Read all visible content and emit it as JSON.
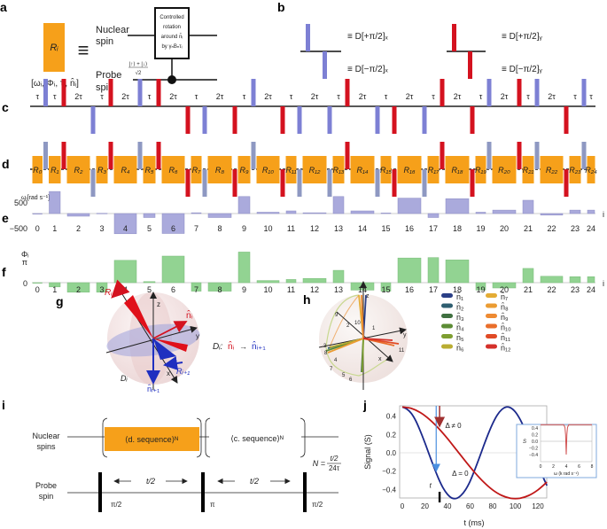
{
  "panel_labels": {
    "a": "a",
    "b": "b",
    "c": "c",
    "d": "d",
    "e": "e",
    "f": "f",
    "g": "g",
    "h": "h",
    "i": "i",
    "j": "j"
  },
  "colors": {
    "pulse_blue": "#7d80d4",
    "pulse_blue_d": "#8e98c2",
    "pulse_red": "#d4121f",
    "block_orange": "#f6a01a",
    "omega_bar": "#aaaadc",
    "phi_bar": "#92d392",
    "curve_blue": "#1c2a8c",
    "curve_red": "#c01818",
    "arrow_light_blue": "#4a8fe0",
    "arrow_dark_red": "#a03030"
  },
  "a": {
    "block_label": "Rᵢ",
    "params": "[ωᵢ, Φᵢ, τᵢ, n̂ᵢ]",
    "equiv": "≡",
    "nuclear_label": [
      "Nuclear",
      "spin"
    ],
    "probe_label": [
      "Probe",
      "spin"
    ],
    "gate_text": [
      "Controlled",
      "rotation",
      "around n̂ᵢ",
      "by γₙBₙτᵢ"
    ],
    "probe_state_num": "|↑⟩ + |↓⟩",
    "probe_state_den": "√2"
  },
  "b": {
    "blue_up": "≡ D[+π/2]ₓ",
    "blue_down": "≡ D[−π/2]ₓ",
    "red_up": "≡ D[+π/2]ᵧ",
    "red_down": "≡ D[−π/2]ᵧ"
  },
  "c": {
    "gaps": [
      "τ",
      "τ",
      "2τ",
      "τ",
      "2τ",
      "τ",
      "2τ",
      "τ",
      "2τ",
      "τ",
      "2τ",
      "τ",
      "2τ",
      "τ",
      "2τ",
      "τ",
      "2τ",
      "τ",
      "2τ",
      "τ",
      "2τ",
      "τ",
      "2τ",
      "τ",
      "τ"
    ],
    "pulses": [
      [
        "blue",
        "up"
      ],
      [
        "red",
        "up"
      ],
      [
        "blue",
        "down"
      ],
      [
        "red",
        "up"
      ],
      [
        "blue",
        "up"
      ],
      [
        "red",
        "up"
      ],
      [
        "red",
        "down"
      ],
      [
        "blue",
        "down"
      ],
      [
        "red",
        "down"
      ],
      [
        "blue",
        "up"
      ],
      [
        "red",
        "down"
      ],
      [
        "blue",
        "down"
      ],
      [
        "blue",
        "down"
      ],
      [
        "red",
        "up"
      ],
      [
        "blue",
        "down"
      ],
      [
        "red",
        "down"
      ],
      [
        "blue",
        "down"
      ],
      [
        "red",
        "up"
      ],
      [
        "red",
        "down"
      ],
      [
        "blue",
        "up"
      ],
      [
        "red",
        "up"
      ],
      [
        "blue",
        "up"
      ],
      [
        "red",
        "down"
      ],
      [
        "blue",
        "up"
      ]
    ]
  },
  "d": {
    "blocks": [
      "R₀",
      "R₁",
      "R₂",
      "R₃",
      "R₄",
      "R₅",
      "R₆",
      "R₇",
      "R₈",
      "R₉",
      "R₁₀",
      "R₁₁",
      "R₁₂",
      "R₁₃",
      "R₁₄",
      "R₁₅",
      "R₁₆",
      "R₁₇",
      "R₁₈",
      "R₁₉",
      "R₂₀",
      "R₂₁",
      "R₂₂",
      "R₂₃",
      "R₂₄"
    ],
    "omega_label": "ωᵢ[rad s⁻¹]"
  },
  "chart_data": [
    {
      "id": "e",
      "type": "bar",
      "ylabel": "ωᵢ[rad s⁻¹]",
      "xlabel": "i",
      "categories": [
        "0",
        "1",
        "2",
        "3",
        "4",
        "5",
        "6",
        "7",
        "8",
        "9",
        "10",
        "11",
        "12",
        "13",
        "14",
        "15",
        "16",
        "17",
        "18",
        "19",
        "20",
        "21",
        "22",
        "23",
        "24"
      ],
      "values": [
        0,
        830,
        -100,
        10,
        -760,
        -150,
        -750,
        30,
        -150,
        640,
        50,
        100,
        30,
        640,
        100,
        20,
        580,
        -150,
        560,
        50,
        130,
        500,
        -60,
        130,
        130
      ],
      "yticks": [
        "500",
        "−500"
      ],
      "ylim": [
        -800,
        900
      ]
    },
    {
      "id": "f",
      "type": "bar",
      "ylabel": "Φᵢ",
      "xlabel": "i",
      "unit": "π",
      "categories": [
        "0",
        "1",
        "2",
        "3",
        "4",
        "5",
        "6",
        "7",
        "8",
        "9",
        "10",
        "11",
        "12",
        "13",
        "14",
        "15",
        "16",
        "17",
        "18",
        "19",
        "20",
        "21",
        "22",
        "23",
        "24"
      ],
      "values": [
        0,
        -0.2,
        -0.45,
        -0.45,
        1.05,
        0.05,
        1.25,
        -0.4,
        -0.4,
        1.44,
        0.1,
        0.15,
        0.2,
        0.58,
        -0.35,
        -0.4,
        1.16,
        1.18,
        1.07,
        -0.35,
        -0.25,
        0.67,
        0.3,
        0.28,
        0.28
      ],
      "yticks": [
        "π",
        "0"
      ]
    },
    {
      "id": "j",
      "type": "line",
      "xlabel": "t (ms)",
      "ylabel": "Signal (S)",
      "xlim": [
        0,
        128
      ],
      "ylim": [
        -0.5,
        0.5
      ],
      "xticks": [
        "0",
        "20",
        "40",
        "60",
        "80",
        "100",
        "120"
      ],
      "yticks": [
        "0.4",
        "0.2",
        "0.0",
        "−0.2",
        "−0.4"
      ],
      "grid": false,
      "series": [
        {
          "color": "#1c2a8c",
          "points": [
            [
              0,
              0.5
            ],
            [
              4,
              0.477
            ],
            [
              8,
              0.429
            ],
            [
              12,
              0.347
            ],
            [
              16,
              0.235
            ],
            [
              20,
              0.109
            ],
            [
              24,
              -0.025
            ],
            [
              28,
              -0.156
            ],
            [
              32,
              -0.279
            ],
            [
              36,
              -0.381
            ],
            [
              40,
              -0.453
            ],
            [
              44,
              -0.494
            ],
            [
              48,
              -0.497
            ],
            [
              52,
              -0.464
            ],
            [
              56,
              -0.402
            ],
            [
              60,
              -0.31
            ],
            [
              64,
              -0.19
            ],
            [
              68,
              -0.06
            ],
            [
              72,
              0.075
            ],
            [
              76,
              0.204
            ],
            [
              80,
              0.319
            ],
            [
              84,
              0.411
            ],
            [
              88,
              0.471
            ],
            [
              92,
              0.499
            ],
            [
              96,
              0.49
            ],
            [
              100,
              0.446
            ],
            [
              104,
              0.37
            ],
            [
              108,
              0.268
            ],
            [
              112,
              0.146
            ],
            [
              116,
              0.013
            ],
            [
              120,
              -0.124
            ],
            [
              124,
              -0.249
            ],
            [
              128,
              -0.357
            ]
          ]
        },
        {
          "color": "#c01818",
          "points": [
            [
              0,
              0.5
            ],
            [
              8,
              0.484
            ],
            [
              16,
              0.438
            ],
            [
              24,
              0.364
            ],
            [
              32,
              0.268
            ],
            [
              40,
              0.155
            ],
            [
              48,
              0.031
            ],
            [
              56,
              -0.094
            ],
            [
              64,
              -0.213
            ],
            [
              72,
              -0.319
            ],
            [
              80,
              -0.405
            ],
            [
              88,
              -0.465
            ],
            [
              96,
              -0.496
            ],
            [
              104,
              -0.496
            ],
            [
              112,
              -0.465
            ],
            [
              120,
              -0.405
            ],
            [
              128,
              -0.319
            ]
          ]
        }
      ],
      "annotations": {
        "delta_nonzero": "Δ ≠ 0",
        "delta_zero": "Δ = 0",
        "t_marker": "t",
        "t_marker_value": 33
      },
      "inset": {
        "xlabel": "ω (k rad s⁻¹)",
        "ylabel": "S",
        "xlim": [
          0,
          8
        ],
        "ylim": [
          -0.45,
          0.5
        ],
        "xticks": [
          "0",
          "2",
          "4",
          "6",
          "8"
        ],
        "yticks": [
          "0.4",
          "0.2",
          "0.0",
          "−0.2",
          "−0.4"
        ],
        "points": [
          [
            0,
            0.5
          ],
          [
            3.6,
            0.5
          ],
          [
            3.8,
            0.42
          ],
          [
            3.9,
            0.2
          ],
          [
            4,
            -0.4
          ],
          [
            4.1,
            0.2
          ],
          [
            4.2,
            0.42
          ],
          [
            4.4,
            0.5
          ],
          [
            8,
            0.5
          ]
        ]
      }
    }
  ],
  "g": {
    "R_i": "Rᵢ",
    "n_i": "n̂ᵢ",
    "z": "z",
    "y": "y",
    "x": "x",
    "R_next": "Rᵢ₊₁",
    "n_next": "n̂ᵢ₊₁",
    "D_i": "Dᵢ",
    "map_D": "Dᵢ:",
    "map_from": "n̂ᵢ",
    "map_arrow": "→",
    "map_to": "n̂ᵢ₊₁"
  },
  "h": {
    "axes": {
      "z": "z",
      "y": "y",
      "x": "x"
    },
    "path_numbers": [
      "9",
      "2",
      "10",
      "1",
      "11",
      "3",
      "8",
      "4",
      "7",
      "5",
      "6"
    ],
    "legend": [
      {
        "label": "n̂₁",
        "color": "#2b3f86"
      },
      {
        "label": "n̂₂",
        "color": "#2f5e70"
      },
      {
        "label": "n̂₃",
        "color": "#3f7040"
      },
      {
        "label": "n̂₄",
        "color": "#5c8c35"
      },
      {
        "label": "n̂₅",
        "color": "#7e9e30"
      },
      {
        "label": "n̂₆",
        "color": "#b9ad32"
      },
      {
        "label": "n̂₇",
        "color": "#e4ac35"
      },
      {
        "label": "n̂₈",
        "color": "#eb9c33"
      },
      {
        "label": "n̂₉",
        "color": "#ee8a32"
      },
      {
        "label": "n̂₁₀",
        "color": "#e96e2b"
      },
      {
        "label": "n̂₁₁",
        "color": "#e04a25"
      },
      {
        "label": "n̂₁₂",
        "color": "#d4302a"
      }
    ]
  },
  "i": {
    "nuclear_label": [
      "Nuclear",
      "spins"
    ],
    "probe_label": [
      "Probe",
      "spin"
    ],
    "d_sequence": "⟨d. sequence⟩ᴺ",
    "c_sequence": "⟨c. sequence⟩ᴺ",
    "N_eq": "N =",
    "N_num": "t/2",
    "N_den": "24τ",
    "half_t": "t/2",
    "pulse_labels": [
      "π/2",
      "π",
      "π/2"
    ]
  }
}
